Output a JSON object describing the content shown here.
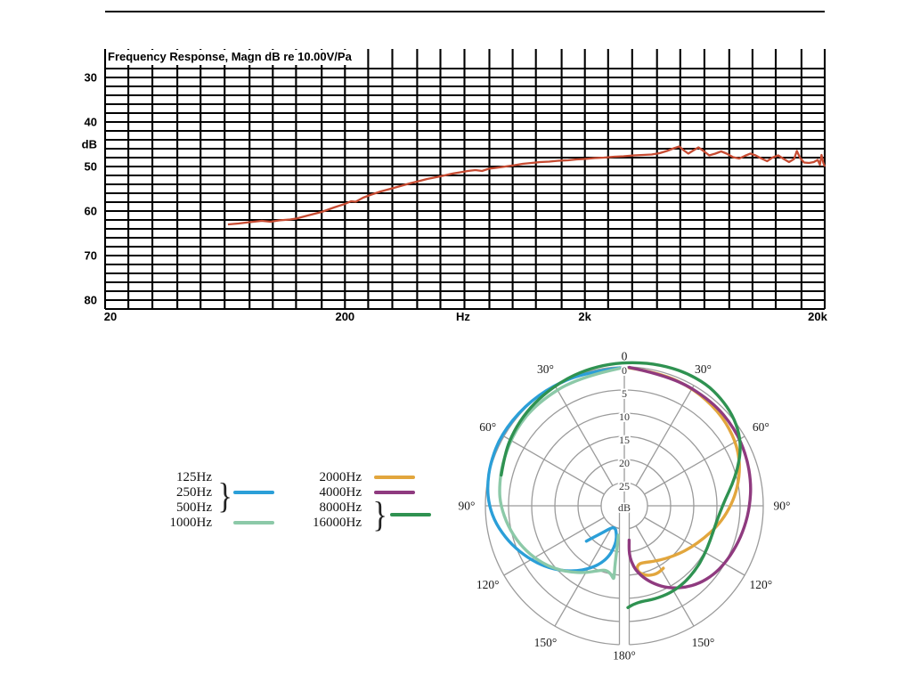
{
  "legend": {
    "bracket_glyph": "}",
    "groups": [
      {
        "labels": [
          "125Hz",
          "250Hz",
          "500Hz"
        ],
        "bracket": true,
        "color": "#2b9fd8"
      },
      {
        "labels": [
          "1000Hz"
        ],
        "bracket": false,
        "color": "#8cc9a8"
      },
      {
        "labels": [
          "2000Hz"
        ],
        "bracket": false,
        "color": "#e2a63d"
      },
      {
        "labels": [
          "4000Hz"
        ],
        "bracket": false,
        "color": "#8f3a7f"
      },
      {
        "labels": [
          "8000Hz",
          "16000Hz"
        ],
        "bracket": true,
        "color": "#2f9251"
      }
    ]
  },
  "chart_data": [
    {
      "type": "line",
      "title": "Frequency Response, Magn dB re 10.00V/Pa",
      "ylabel": "dB",
      "x_unit_label": "Hz",
      "x_scale": "log",
      "xlim": [
        20,
        20000
      ],
      "ylim_db": [
        28,
        82
      ],
      "y_axis_inverted": true,
      "y_major_ticks": [
        30,
        40,
        50,
        60,
        70,
        80
      ],
      "y_minor_step_db": 2,
      "grid_color": "#000000",
      "x_tick_labels": [
        {
          "f": 20,
          "label": "20"
        },
        {
          "f": 200,
          "label": "200"
        },
        {
          "f": 2000,
          "label": "2k"
        },
        {
          "f": 20000,
          "label": "20k"
        }
      ],
      "x_grid_freqs": [
        20,
        25,
        31.5,
        40,
        50,
        63,
        80,
        100,
        125,
        160,
        200,
        250,
        315,
        400,
        500,
        630,
        800,
        1000,
        1250,
        1600,
        2000,
        2500,
        3150,
        4000,
        5000,
        6300,
        8000,
        10000,
        12500,
        16000,
        20000
      ],
      "series": [
        {
          "name": "response-curve",
          "color": "#c74b32",
          "points": [
            [
              65,
              63.0
            ],
            [
              72,
              62.8
            ],
            [
              80,
              62.5
            ],
            [
              90,
              62.2
            ],
            [
              98,
              62.4
            ],
            [
              106,
              62.1
            ],
            [
              118,
              61.9
            ],
            [
              125,
              61.7
            ],
            [
              140,
              61.0
            ],
            [
              160,
              60.2
            ],
            [
              180,
              59.2
            ],
            [
              200,
              58.4
            ],
            [
              212,
              57.8
            ],
            [
              222,
              57.9
            ],
            [
              238,
              57.0
            ],
            [
              258,
              56.3
            ],
            [
              282,
              55.6
            ],
            [
              310,
              55.0
            ],
            [
              340,
              54.4
            ],
            [
              372,
              53.8
            ],
            [
              405,
              53.3
            ],
            [
              440,
              52.8
            ],
            [
              480,
              52.4
            ],
            [
              520,
              52.0
            ],
            [
              560,
              51.6
            ],
            [
              605,
              51.3
            ],
            [
              650,
              51.0
            ],
            [
              700,
              50.8
            ],
            [
              745,
              51.0
            ],
            [
              795,
              50.5
            ],
            [
              850,
              50.3
            ],
            [
              905,
              50.1
            ],
            [
              960,
              49.9
            ],
            [
              1020,
              49.7
            ],
            [
              1100,
              49.4
            ],
            [
              1200,
              49.2
            ],
            [
              1300,
              49.0
            ],
            [
              1420,
              48.9
            ],
            [
              1550,
              48.7
            ],
            [
              1700,
              48.6
            ],
            [
              1850,
              48.4
            ],
            [
              2000,
              48.3
            ],
            [
              2200,
              48.1
            ],
            [
              2400,
              48.0
            ],
            [
              2650,
              47.8
            ],
            [
              2900,
              47.7
            ],
            [
              3200,
              47.5
            ],
            [
              3500,
              47.4
            ],
            [
              3800,
              47.3
            ],
            [
              4100,
              47.0
            ],
            [
              4400,
              46.5
            ],
            [
              4700,
              45.9
            ],
            [
              4950,
              45.5
            ],
            [
              5150,
              46.3
            ],
            [
              5400,
              47.1
            ],
            [
              5700,
              46.3
            ],
            [
              5950,
              45.7
            ],
            [
              6250,
              46.5
            ],
            [
              6600,
              47.5
            ],
            [
              7000,
              47.1
            ],
            [
              7400,
              46.6
            ],
            [
              7800,
              47.1
            ],
            [
              8300,
              47.9
            ],
            [
              8800,
              48.2
            ],
            [
              9300,
              47.6
            ],
            [
              9800,
              47.1
            ],
            [
              10300,
              47.5
            ],
            [
              10900,
              48.2
            ],
            [
              11500,
              48.8
            ],
            [
              12100,
              48.0
            ],
            [
              12800,
              47.5
            ],
            [
              13500,
              48.3
            ],
            [
              14200,
              49.0
            ],
            [
              14900,
              48.3
            ],
            [
              15300,
              46.5
            ],
            [
              15800,
              48.1
            ],
            [
              16400,
              49.1
            ],
            [
              17200,
              49.2
            ],
            [
              18000,
              49.0
            ],
            [
              18700,
              48.5
            ],
            [
              19100,
              49.6
            ],
            [
              19400,
              47.4
            ],
            [
              19750,
              49.2
            ],
            [
              20000,
              50.0
            ]
          ]
        }
      ]
    },
    {
      "type": "line",
      "projection": "polar",
      "grid_color": "#9b9b9b",
      "radial_axis": {
        "unit": "dB",
        "ring_values": [
          0,
          5,
          10,
          15,
          20,
          25
        ],
        "ring_step_db": 5,
        "center_db": 30
      },
      "angle_labels": [
        {
          "a": 0,
          "label": "0"
        },
        {
          "a": 30,
          "label": "30°"
        },
        {
          "a": -30,
          "label": "30°"
        },
        {
          "a": 60,
          "label": "60°"
        },
        {
          "a": -60,
          "label": "60°"
        },
        {
          "a": 90,
          "label": "90°"
        },
        {
          "a": -90,
          "label": "90°"
        },
        {
          "a": 120,
          "label": "120°"
        },
        {
          "a": -120,
          "label": "120°"
        },
        {
          "a": 150,
          "label": "150°"
        },
        {
          "a": -150,
          "label": "150°"
        },
        {
          "a": 180,
          "label": "180°"
        }
      ],
      "series": [
        {
          "name": "125-500Hz",
          "color": "#2b9fd8",
          "points": [
            [
              -2,
              0.2
            ],
            [
              -16,
              0.1
            ],
            [
              -30,
              -0.2
            ],
            [
              -45,
              -0.5
            ],
            [
              -60,
              -0.7
            ],
            [
              -72,
              -0.4
            ],
            [
              -82,
              0.1
            ],
            [
              -90,
              0.8
            ],
            [
              -98,
              2.0
            ],
            [
              -107,
              3.8
            ],
            [
              -116,
              5.8
            ],
            [
              -125,
              7.8
            ],
            [
              -134,
              10.0
            ],
            [
              -143,
              12.3
            ],
            [
              -151,
              14.5
            ],
            [
              -158,
              16.6
            ],
            [
              -163,
              18.6
            ],
            [
              -166,
              20.6
            ],
            [
              -167,
              22.3
            ],
            [
              -164,
              23.8
            ],
            [
              -158,
              24.8
            ],
            [
              -150,
              24.6
            ],
            [
              -142,
              22.8
            ],
            [
              -136,
              20.6
            ],
            [
              -133,
              18.8
            ]
          ]
        },
        {
          "name": "1000Hz",
          "color": "#8cc9a8",
          "points": [
            [
              -2,
              0.3
            ],
            [
              -20,
              0.5
            ],
            [
              -40,
              0.9
            ],
            [
              -55,
              1.3
            ],
            [
              -70,
              2.0
            ],
            [
              -82,
              2.7
            ],
            [
              -90,
              3.3
            ],
            [
              -100,
              4.5
            ],
            [
              -110,
              5.9
            ],
            [
              -120,
              7.5
            ],
            [
              -130,
              9.3
            ],
            [
              -140,
              11.3
            ],
            [
              -150,
              13.3
            ],
            [
              -158,
              14.9
            ],
            [
              -164,
              15.6
            ],
            [
              -169,
              15.0
            ],
            [
              -172,
              13.8
            ],
            [
              -171.5,
              15.5
            ],
            [
              -171,
              17.5
            ],
            [
              -170.5,
              19.5
            ],
            [
              -170,
              21.5
            ],
            [
              -168.5,
              23.5
            ]
          ]
        },
        {
          "name": "2000Hz",
          "color": "#e2a63d",
          "points": [
            [
              2,
              0.2
            ],
            [
              15,
              0.3
            ],
            [
              30,
              0.6
            ],
            [
              45,
              1.2
            ],
            [
              57,
              2.0
            ],
            [
              67,
              3.0
            ],
            [
              76,
              4.4
            ],
            [
              85,
              6.0
            ],
            [
              94,
              7.8
            ],
            [
              103,
              9.6
            ],
            [
              112,
              11.4
            ],
            [
              122,
              13.0
            ],
            [
              132,
              14.4
            ],
            [
              142,
              15.5
            ],
            [
              152,
              16.4
            ],
            [
              160,
              17.0
            ],
            [
              166,
              17.1
            ],
            [
              169,
              16.2
            ],
            [
              167,
              15.0
            ],
            [
              161,
              14.0
            ],
            [
              154,
              13.7
            ],
            [
              148,
              14.1
            ]
          ]
        },
        {
          "name": "4000Hz",
          "color": "#8f3a7f",
          "points": [
            [
              2,
              0.1
            ],
            [
              20,
              0.2
            ],
            [
              40,
              0.5
            ],
            [
              55,
              0.9
            ],
            [
              68,
              1.5
            ],
            [
              80,
              2.2
            ],
            [
              90,
              2.9
            ],
            [
              100,
              3.6
            ],
            [
              110,
              4.3
            ],
            [
              120,
              5.0
            ],
            [
              128,
              5.7
            ],
            [
              136,
              6.7
            ],
            [
              144,
              8.1
            ],
            [
              152,
              9.9
            ],
            [
              159,
              11.9
            ],
            [
              165,
              13.9
            ],
            [
              170,
              15.9
            ],
            [
              173,
              17.9
            ],
            [
              174,
              19.5
            ],
            [
              173.5,
              21.0
            ],
            [
              172,
              22.5
            ]
          ]
        },
        {
          "name": "8000-16000Hz",
          "color": "#2f9251",
          "points": [
            [
              -76,
              2.6
            ],
            [
              -66,
              1.8
            ],
            [
              -56,
              1.2
            ],
            [
              -46,
              0.7
            ],
            [
              -36,
              0.3
            ],
            [
              -26,
              -0.1
            ],
            [
              -16,
              -0.5
            ],
            [
              -6,
              -0.8
            ],
            [
              4,
              -1.1
            ],
            [
              14,
              -1.4
            ],
            [
              24,
              -1.7
            ],
            [
              34,
              -1.7
            ],
            [
              42,
              -1.2
            ],
            [
              50,
              -0.5
            ],
            [
              58,
              0.7
            ],
            [
              65,
              2.3
            ],
            [
              72,
              4.3
            ],
            [
              79,
              6.3
            ],
            [
              86,
              8.1
            ],
            [
              94,
              9.3
            ],
            [
              102,
              9.9
            ],
            [
              112,
              10.0
            ],
            [
              122,
              9.7
            ],
            [
              132,
              9.3
            ],
            [
              142,
              8.9
            ],
            [
              152,
              8.7
            ],
            [
              162,
              8.8
            ],
            [
              170,
              9.0
            ],
            [
              175,
              8.6
            ],
            [
              178,
              8.0
            ]
          ]
        }
      ]
    }
  ]
}
